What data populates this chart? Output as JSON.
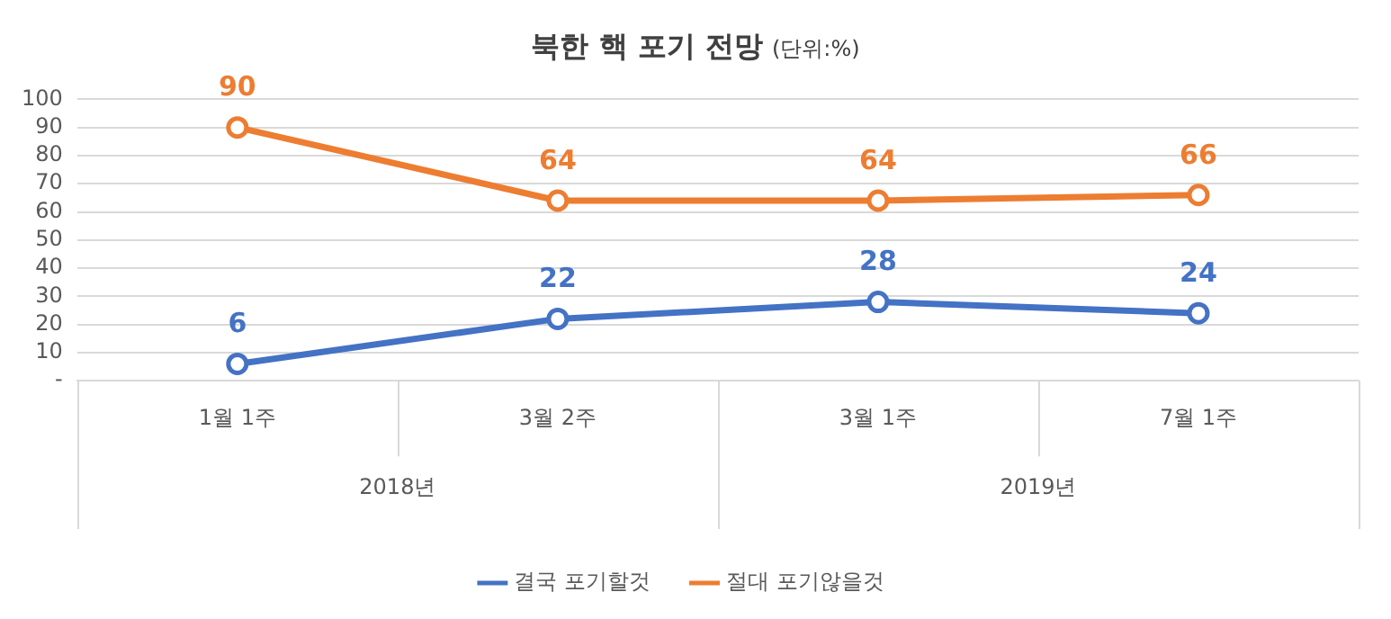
{
  "chart_data": {
    "type": "line",
    "title": "북한 핵 포기 전망",
    "subtitle": "(단위:%)",
    "categories": [
      "1월 1주",
      "3월 2주",
      "3월 1주",
      "7월 1주"
    ],
    "annotations": [
      "2018년",
      "2019년"
    ],
    "series": [
      {
        "name": "결국 포기할것",
        "color": "#4472c4",
        "values": [
          6,
          22,
          28,
          24
        ]
      },
      {
        "name": "절대 포기않을것",
        "color": "#ed7d31",
        "values": [
          90,
          64,
          64,
          66
        ]
      }
    ],
    "ylim": [
      0,
      100
    ],
    "yticks": [
      {
        "value": 0,
        "label": "-"
      },
      10,
      20,
      30,
      40,
      50,
      60,
      70,
      80,
      90,
      100
    ],
    "grid": "y",
    "legend": "bottom",
    "marker": "circle",
    "line_style": "solid",
    "data_labels": true
  }
}
